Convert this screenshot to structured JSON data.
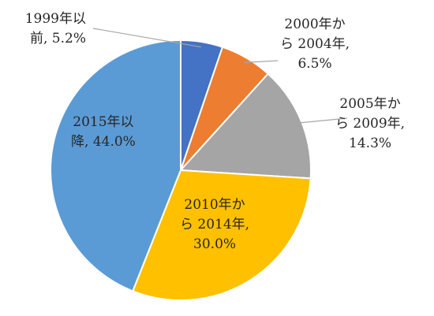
{
  "chart_data": {
    "type": "pie",
    "start_angle_deg": 0,
    "direction": "clockwise",
    "slices": [
      {
        "label_lines": [
          "1999年以",
          "前, 5.2%"
        ],
        "value": 5.2,
        "color": "#4472c4"
      },
      {
        "label_lines": [
          "2000年か",
          "ら 2004年,",
          "6.5%"
        ],
        "value": 6.5,
        "color": "#ed7d31"
      },
      {
        "label_lines": [
          "2005年か",
          "ら 2009年,",
          "14.3%"
        ],
        "value": 14.3,
        "color": "#a5a5a5"
      },
      {
        "label_lines": [
          "2010年か",
          "ら 2014年,",
          "30.0%"
        ],
        "value": 30.0,
        "color": "#ffc000"
      },
      {
        "label_lines": [
          "2015年以",
          "降, 44.0%"
        ],
        "value": 44.0,
        "color": "#5b9bd5"
      }
    ]
  }
}
